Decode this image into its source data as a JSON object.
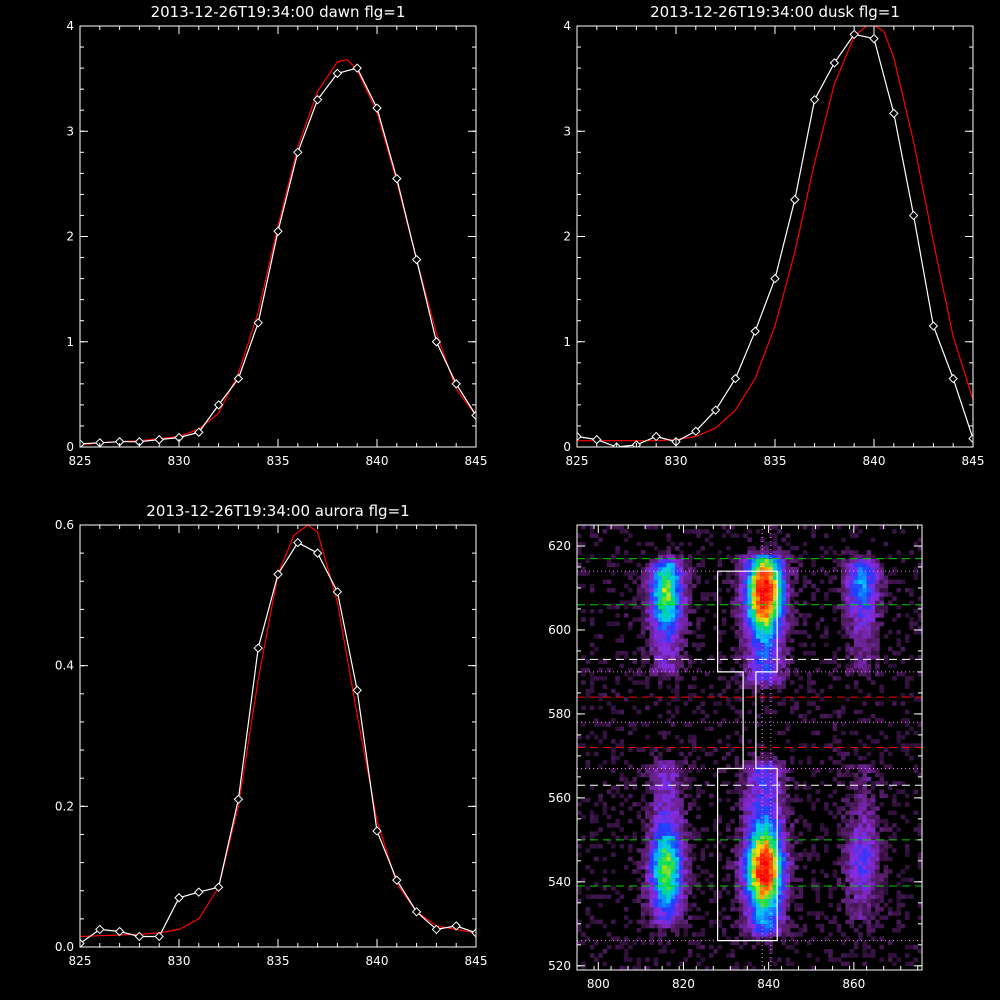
{
  "figure": {
    "background": "#000000",
    "foreground": "#ffffff"
  },
  "chart_data": [
    {
      "type": "line",
      "title": "2013-12-26T19:34:00 dawn flg=1",
      "xlim": [
        825,
        845
      ],
      "ylim": [
        0,
        4
      ],
      "xticks": [
        825,
        830,
        835,
        840,
        845
      ],
      "yticks": [
        0,
        1,
        2,
        3,
        4
      ],
      "series": [
        {
          "color": "#ffffff",
          "marker": "diamond",
          "x": [
            825,
            826,
            827,
            828,
            829,
            830,
            831,
            832,
            833,
            834,
            835,
            836,
            837,
            838,
            839,
            840,
            841,
            842,
            843,
            844,
            845
          ],
          "y": [
            0.03,
            0.04,
            0.05,
            0.05,
            0.07,
            0.09,
            0.14,
            0.4,
            0.65,
            1.18,
            2.05,
            2.8,
            3.3,
            3.55,
            3.6,
            3.22,
            2.55,
            1.78,
            1.0,
            0.6,
            0.3
          ]
        },
        {
          "color": "#ff0000",
          "marker": "none",
          "x": [
            825,
            826,
            827,
            828,
            829,
            830,
            831,
            832,
            833,
            834,
            835,
            836,
            837,
            838,
            838.5,
            839,
            840,
            841,
            842,
            843,
            844,
            845
          ],
          "y": [
            0.02,
            0.04,
            0.05,
            0.06,
            0.08,
            0.1,
            0.17,
            0.32,
            0.7,
            1.28,
            2.1,
            2.85,
            3.38,
            3.66,
            3.68,
            3.58,
            3.18,
            2.52,
            1.78,
            1.08,
            0.55,
            0.3
          ]
        }
      ]
    },
    {
      "type": "line",
      "title": "2013-12-26T19:34:00 dusk flg=1",
      "xlim": [
        825,
        845
      ],
      "ylim": [
        0,
        4
      ],
      "xticks": [
        825,
        830,
        835,
        840,
        845
      ],
      "yticks": [
        0,
        1,
        2,
        3,
        4
      ],
      "series": [
        {
          "color": "#ffffff",
          "marker": "diamond",
          "x": [
            825,
            826,
            827,
            828,
            829,
            830,
            831,
            832,
            833,
            834,
            835,
            836,
            837,
            838,
            839,
            840,
            841,
            842,
            843,
            844,
            845
          ],
          "y": [
            0.1,
            0.07,
            0.0,
            0.02,
            0.1,
            0.05,
            0.15,
            0.35,
            0.65,
            1.1,
            1.6,
            2.35,
            3.3,
            3.65,
            3.92,
            3.88,
            3.17,
            2.2,
            1.15,
            0.65,
            0.08
          ]
        },
        {
          "color": "#ff0000",
          "marker": "none",
          "x": [
            825,
            826,
            827,
            828,
            829,
            830,
            831,
            832,
            833,
            834,
            835,
            836,
            837,
            838,
            839,
            839.8,
            840.5,
            841,
            842,
            843,
            844,
            845
          ],
          "y": [
            0.06,
            0.06,
            0.06,
            0.06,
            0.06,
            0.07,
            0.1,
            0.18,
            0.35,
            0.65,
            1.15,
            1.85,
            2.7,
            3.45,
            3.9,
            4.03,
            3.95,
            3.7,
            2.9,
            1.95,
            1.05,
            0.45
          ]
        }
      ]
    },
    {
      "type": "line",
      "title": "2013-12-26T19:34:00 aurora flg=1",
      "xlim": [
        825,
        845
      ],
      "ylim": [
        0,
        0.6
      ],
      "xticks": [
        825,
        830,
        835,
        840,
        845
      ],
      "yticks": [
        0.0,
        0.2,
        0.4,
        0.6
      ],
      "ytick_labels": [
        "0.0",
        "0.2",
        "0.4",
        "0.6"
      ],
      "series": [
        {
          "color": "#ffffff",
          "marker": "diamond",
          "x": [
            825,
            826,
            827,
            828,
            829,
            830,
            831,
            832,
            833,
            834,
            835,
            836,
            837,
            838,
            839,
            840,
            841,
            842,
            843,
            844,
            845
          ],
          "y": [
            0.005,
            0.025,
            0.022,
            0.015,
            0.015,
            0.07,
            0.078,
            0.085,
            0.21,
            0.425,
            0.53,
            0.575,
            0.56,
            0.505,
            0.365,
            0.165,
            0.095,
            0.05,
            0.025,
            0.03,
            0.02
          ]
        },
        {
          "color": "#ff0000",
          "marker": "none",
          "x": [
            825,
            826,
            827,
            828,
            829,
            830,
            831,
            832,
            833,
            834,
            835,
            835.8,
            836.5,
            837,
            838,
            839,
            840,
            841,
            842,
            843,
            844,
            845
          ],
          "y": [
            0.015,
            0.016,
            0.017,
            0.018,
            0.02,
            0.025,
            0.04,
            0.085,
            0.2,
            0.38,
            0.53,
            0.585,
            0.6,
            0.59,
            0.49,
            0.33,
            0.18,
            0.09,
            0.05,
            0.03,
            0.025,
            0.02
          ]
        }
      ]
    },
    {
      "type": "heatmap",
      "xlim": [
        795,
        876
      ],
      "ylim": [
        519,
        625
      ],
      "xticks": [
        800,
        820,
        840,
        860
      ],
      "yticks": [
        520,
        540,
        560,
        580,
        600,
        620
      ],
      "colormap": [
        "#000000",
        "#5a1f6e",
        "#8a2be2",
        "#1e3cff",
        "#00c8ff",
        "#00e05a",
        "#ffe000",
        "#ff5000",
        "#ff0000"
      ],
      "columns": [
        {
          "x": 816,
          "width": 7,
          "segments": [
            {
              "ylo": 591,
              "yhi": 615,
              "peak_y": 609,
              "peak": 0.66
            },
            {
              "ylo": 531,
              "yhi": 567,
              "peak_y": 543,
              "peak": 0.68
            }
          ]
        },
        {
          "x": 839,
          "width": 8,
          "segments": [
            {
              "ylo": 589,
              "yhi": 616,
              "peak_y": 609,
              "peak": 1.0
            },
            {
              "ylo": 529,
              "yhi": 567,
              "peak_y": 543,
              "peak": 1.0
            }
          ]
        },
        {
          "x": 862,
          "width": 7,
          "segments": [
            {
              "ylo": 592,
              "yhi": 615,
              "peak_y": 611,
              "peak": 0.42
            },
            {
              "ylo": 532,
              "yhi": 567,
              "peak_y": 545,
              "peak": 0.3
            }
          ]
        }
      ],
      "hlines": [
        {
          "y": 617,
          "color": "#00d000",
          "style": "dashed"
        },
        {
          "y": 606,
          "color": "#00d000",
          "style": "dashed"
        },
        {
          "y": 550,
          "color": "#00d000",
          "style": "dashed"
        },
        {
          "y": 539,
          "color": "#00d000",
          "style": "dashed"
        },
        {
          "y": 593,
          "color": "#ffffff",
          "style": "dashed"
        },
        {
          "y": 563,
          "color": "#ffffff",
          "style": "dashed"
        },
        {
          "y": 584,
          "color": "#ff0000",
          "style": "dashed"
        },
        {
          "y": 572,
          "color": "#ff0000",
          "style": "dashed"
        },
        {
          "y": 614,
          "color": "#ff80ff",
          "style": "dotted"
        },
        {
          "y": 590,
          "color": "#ff80ff",
          "style": "dotted"
        },
        {
          "y": 578,
          "color": "#ff80ff",
          "style": "dotted"
        },
        {
          "y": 567,
          "color": "#ff80ff",
          "style": "dotted"
        },
        {
          "y": 526,
          "color": "#ff80ff",
          "style": "dotted"
        }
      ],
      "vlines": [
        {
          "x": 838.5,
          "color": "#ff80ff",
          "style": "dotted"
        },
        {
          "x": 840.5,
          "color": "#ff80ff",
          "style": "dotted"
        }
      ],
      "outline": {
        "color": "#ffffff",
        "points": [
          [
            828,
            614
          ],
          [
            842,
            614
          ],
          [
            842,
            590
          ],
          [
            837,
            590
          ],
          [
            837,
            567
          ],
          [
            842,
            567
          ],
          [
            842,
            526
          ],
          [
            828,
            526
          ],
          [
            828,
            567
          ],
          [
            834,
            567
          ],
          [
            834,
            590
          ],
          [
            828,
            590
          ],
          [
            828,
            614
          ]
        ]
      }
    }
  ]
}
